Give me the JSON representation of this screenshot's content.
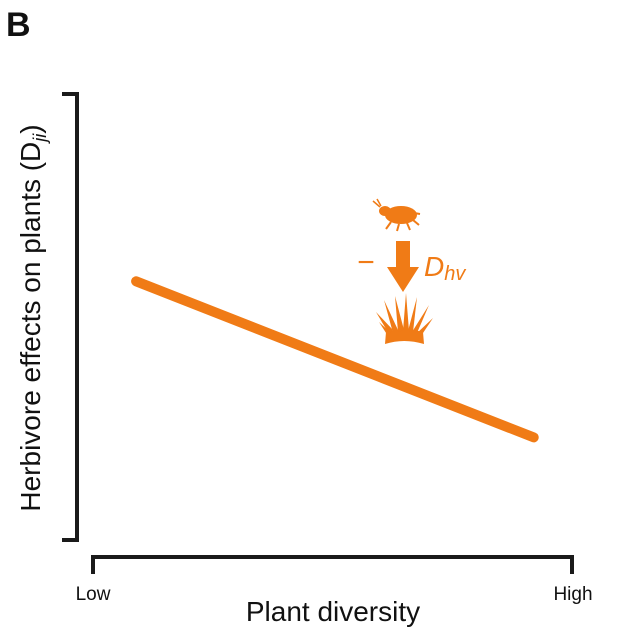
{
  "panel_label": "B",
  "chart_data": {
    "type": "line",
    "title": "",
    "xlabel": "Plant diversity",
    "ylabel": "Herbivore effects on plants (D",
    "ylabel_sub": "ji",
    "ylabel_close": ")",
    "x_tick_labels": [
      "Low",
      "High"
    ],
    "xlim": [
      0,
      1
    ],
    "ylim": [
      0,
      1
    ],
    "grid": false,
    "series": [
      {
        "x": [
          0.09,
          0.92
        ],
        "y": [
          0.58,
          0.23
        ],
        "color": "#f07b16"
      }
    ],
    "annotation": {
      "sign": "−",
      "symbol": "D",
      "subscript": "hv",
      "color": "#f07b16",
      "icons": [
        "herbivore-bug-icon",
        "arrow-down-icon",
        "grass-plant-icon"
      ]
    }
  }
}
